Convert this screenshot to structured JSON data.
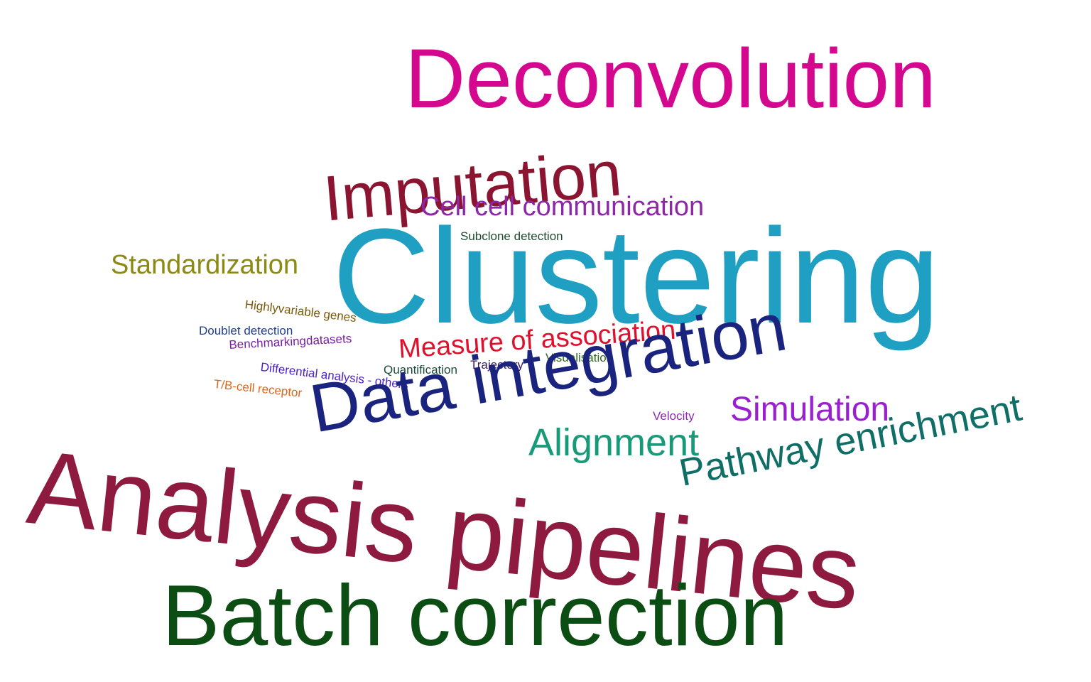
{
  "words": {
    "deconvolution": {
      "text": "Deconvolution",
      "color": "#D4088E"
    },
    "imputation": {
      "text": "Imputation",
      "color": "#8B1530"
    },
    "cell_cell": {
      "text": "Cell cell communication",
      "color": "#8E26A8"
    },
    "subclone": {
      "text": "Subclone detection",
      "color": "#1E4B2E"
    },
    "clustering": {
      "text": "Clustering",
      "color": "#1FA0C3"
    },
    "standardization": {
      "text": "Standardization",
      "color": "#8C8A12"
    },
    "highly_variable": {
      "text": "Highlyvariable genes",
      "color": "#7A5A0A"
    },
    "doublet": {
      "text": "Doublet detection",
      "color": "#1D3F8A"
    },
    "benchmarking": {
      "text": "Benchmarkingdatasets",
      "color": "#7A1FA8"
    },
    "measure": {
      "text": "Measure of association",
      "color": "#E0102C"
    },
    "visualisation": {
      "text": "Visualisation",
      "color": "#2E6B1E"
    },
    "trajectory": {
      "text": "Trajectory",
      "color": "#3A1A5C"
    },
    "quantification": {
      "text": "Quantification",
      "color": "#1A4A3A"
    },
    "differential": {
      "text": "Differential analysis - others",
      "color": "#4A1FC8"
    },
    "tb_cell": {
      "text": "T/B-cell receptor",
      "color": "#D9681E"
    },
    "data_integration": {
      "text": "Data integration",
      "color": "#1A237E"
    },
    "velocity": {
      "text": "Velocity",
      "color": "#8E2AB0"
    },
    "simulation": {
      "text": "Simulation",
      "color": "#9A1FD0"
    },
    "alignment": {
      "text": "Alignment",
      "color": "#189A78"
    },
    "pathway": {
      "text": "Pathway enrichment",
      "color": "#0F6E66"
    },
    "analysis": {
      "text": "Analysis pipelines",
      "color": "#8E1A40"
    },
    "batch": {
      "text": "Batch correction",
      "color": "#0B4D12"
    }
  }
}
